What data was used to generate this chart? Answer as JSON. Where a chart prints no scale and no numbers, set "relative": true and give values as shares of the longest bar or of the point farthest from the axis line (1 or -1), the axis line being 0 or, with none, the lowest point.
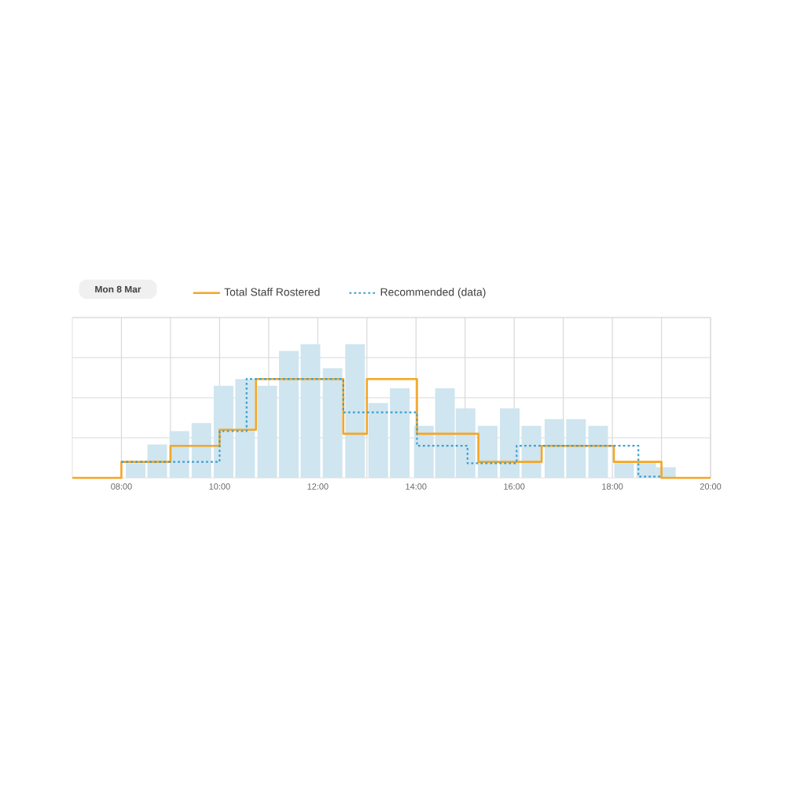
{
  "chart_data": {
    "type": "bar",
    "relative": true,
    "title": "Mon 8 Mar",
    "xlim": [
      7,
      20
    ],
    "xticks": [
      {
        "value": 8,
        "label": "08:00"
      },
      {
        "value": 9,
        "label": null
      },
      {
        "value": 10,
        "label": "10:00"
      },
      {
        "value": 11,
        "label": null
      },
      {
        "value": 12,
        "label": "12:00"
      },
      {
        "value": 13,
        "label": null
      },
      {
        "value": 14,
        "label": "14:00"
      },
      {
        "value": 15,
        "label": null
      },
      {
        "value": 16,
        "label": "16:00"
      },
      {
        "value": 17,
        "label": null
      },
      {
        "value": 18,
        "label": "18:00"
      },
      {
        "value": 19,
        "label": null
      },
      {
        "value": 20,
        "label": "20:00"
      }
    ],
    "grid": true,
    "legend": "top left",
    "series": [
      {
        "color": "#cfe5ef",
        "x": [
          8.29,
          8.73,
          9.18,
          9.63,
          10.08,
          10.52,
          10.97,
          11.41,
          11.85,
          12.3,
          12.76,
          13.23,
          13.67,
          14.16,
          14.59,
          15.01,
          15.46,
          15.91,
          16.35,
          16.82,
          17.26,
          17.71,
          18.24,
          18.69,
          19.09
        ],
        "values": [
          0.11,
          0.25,
          0.35,
          0.41,
          0.69,
          0.74,
          0.69,
          0.95,
          1,
          0.82,
          1,
          0.56,
          0.67,
          0.39,
          0.67,
          0.52,
          0.39,
          0.52,
          0.39,
          0.44,
          0.44,
          0.39,
          0.11,
          0.11,
          0.08
        ]
      },
      {
        "type": "step",
        "name": "Total Staff Rostered",
        "color": "#f5a623",
        "line_style": "solid",
        "x": [
          7,
          8,
          9,
          10,
          10.74,
          12.52,
          13.0,
          14.02,
          15.27,
          16.56,
          18.03,
          19.0,
          20
        ],
        "values": [
          0,
          0.12,
          0.24,
          0.36,
          0.74,
          0.33,
          0.74,
          0.33,
          0.12,
          0.24,
          0.12,
          0,
          0
        ]
      },
      {
        "type": "step",
        "name": "Recommended (data)",
        "color": "#3a9fd0",
        "line_style": "dotted",
        "x": [
          8,
          10,
          10.55,
          12.52,
          14.02,
          15.05,
          16.05,
          18.53,
          19.0
        ],
        "values": [
          0.12,
          0.35,
          0.74,
          0.49,
          0.24,
          0.11,
          0.24,
          0.01,
          0.01
        ]
      }
    ]
  }
}
